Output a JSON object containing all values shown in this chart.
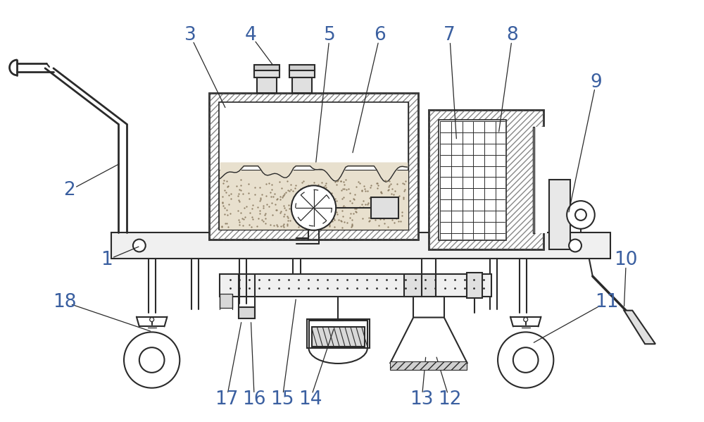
{
  "bg_color": "#ffffff",
  "line_color": "#2a2a2a",
  "label_color": "#3a5fa0",
  "fig_width": 10.0,
  "fig_height": 5.99
}
